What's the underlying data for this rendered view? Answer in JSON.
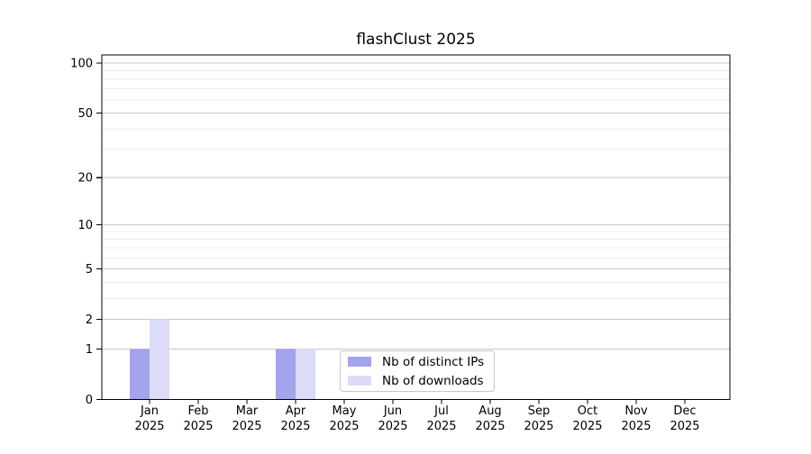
{
  "chart_data": {
    "type": "bar",
    "title": "flashClust 2025",
    "categories": [
      "Jan",
      "Feb",
      "Mar",
      "Apr",
      "May",
      "Jun",
      "Jul",
      "Aug",
      "Sep",
      "Oct",
      "Nov",
      "Dec"
    ],
    "year": "2025",
    "series": [
      {
        "name": "Nb of distinct IPs",
        "color": "#a3a3ee",
        "values": [
          1,
          0,
          0,
          1,
          0,
          0,
          0,
          0,
          0,
          0,
          0,
          0
        ]
      },
      {
        "name": "Nb of downloads",
        "color": "#dcdcf8",
        "values": [
          2,
          0,
          0,
          1,
          0,
          0,
          0,
          0,
          0,
          0,
          0,
          0
        ]
      }
    ],
    "yticks": [
      0,
      1,
      2,
      5,
      10,
      20,
      50,
      100
    ],
    "minor_gridlines": [
      3,
      4,
      6,
      7,
      8,
      9,
      30,
      40,
      60,
      70,
      80,
      90
    ],
    "scale": "log1p",
    "ylim": [
      0,
      112
    ],
    "grid": true,
    "legend_position": "bottom-center"
  }
}
